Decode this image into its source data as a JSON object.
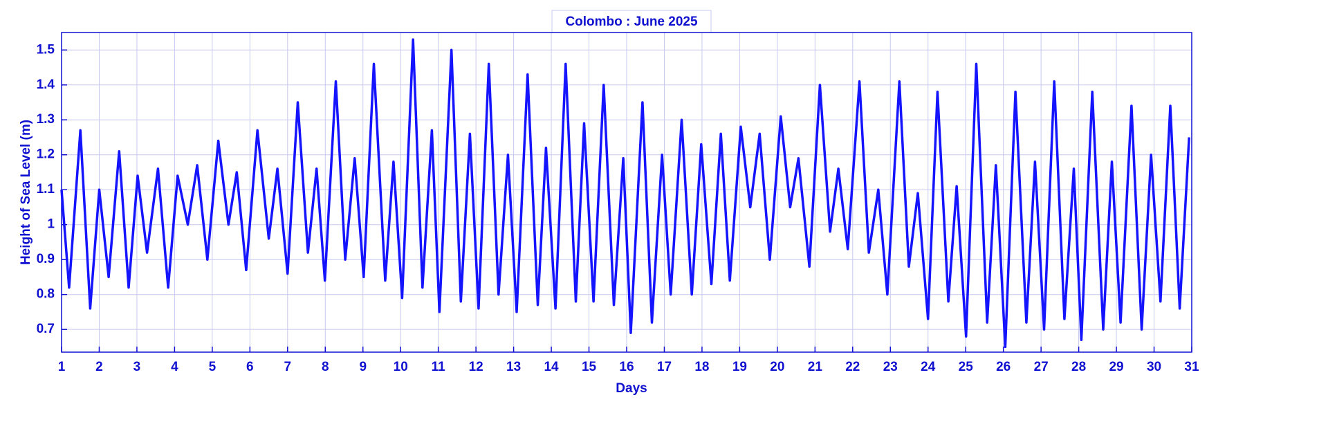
{
  "chart_data": {
    "type": "line",
    "title": "Colombo : June 2025",
    "xlabel": "Days",
    "ylabel": "Height of Sea Level (m)",
    "color": "#1414ff",
    "grid": true,
    "x": [
      1,
      1.2,
      1.5,
      1.76,
      2.0,
      2.25,
      2.53,
      2.78,
      3.02,
      3.27,
      3.56,
      3.83,
      4.08,
      4.35,
      4.6,
      4.87,
      5.16,
      5.43,
      5.65,
      5.9,
      6.2,
      6.5,
      6.73,
      7.0,
      7.27,
      7.54,
      7.77,
      7.99,
      8.28,
      8.53,
      8.78,
      9.02,
      9.29,
      9.59,
      9.81,
      10.04,
      10.33,
      10.58,
      10.83,
      11.03,
      11.35,
      11.6,
      11.84,
      12.07,
      12.34,
      12.6,
      12.85,
      13.08,
      13.37,
      13.64,
      13.86,
      14.11,
      14.38,
      14.65,
      14.87,
      15.12,
      15.39,
      15.66,
      15.91,
      16.11,
      16.42,
      16.67,
      16.94,
      17.17,
      17.46,
      17.73,
      17.98,
      18.25,
      18.5,
      18.74,
      19.03,
      19.28,
      19.53,
      19.8,
      20.09,
      20.34,
      20.56,
      20.85,
      21.13,
      21.4,
      21.62,
      21.87,
      22.18,
      22.43,
      22.68,
      22.92,
      23.24,
      23.49,
      23.73,
      24.0,
      24.25,
      24.54,
      24.76,
      25.01,
      25.28,
      25.57,
      25.8,
      26.05,
      26.32,
      26.61,
      26.84,
      27.08,
      27.35,
      27.62,
      27.87,
      28.07,
      28.36,
      28.65,
      28.88,
      29.11,
      29.4,
      29.67,
      29.92,
      30.17,
      30.43,
      30.68,
      30.93
    ],
    "values": [
      1.1,
      0.82,
      1.27,
      0.76,
      1.1,
      0.85,
      1.21,
      0.82,
      1.14,
      0.92,
      1.16,
      0.82,
      1.14,
      1.0,
      1.17,
      0.9,
      1.24,
      1.0,
      1.15,
      0.87,
      1.27,
      0.96,
      1.16,
      0.86,
      1.35,
      0.92,
      1.16,
      0.84,
      1.41,
      0.9,
      1.19,
      0.85,
      1.46,
      0.84,
      1.18,
      0.79,
      1.53,
      0.82,
      1.27,
      0.75,
      1.5,
      0.78,
      1.26,
      0.76,
      1.46,
      0.8,
      1.2,
      0.75,
      1.43,
      0.77,
      1.22,
      0.76,
      1.46,
      0.78,
      1.29,
      0.78,
      1.4,
      0.77,
      1.19,
      0.69,
      1.35,
      0.72,
      1.2,
      0.8,
      1.3,
      0.8,
      1.23,
      0.83,
      1.26,
      0.84,
      1.28,
      1.05,
      1.26,
      0.9,
      1.31,
      1.05,
      1.19,
      0.88,
      1.4,
      0.98,
      1.16,
      0.93,
      1.41,
      0.92,
      1.1,
      0.8,
      1.41,
      0.88,
      1.09,
      0.73,
      1.38,
      0.78,
      1.11,
      0.68,
      1.46,
      0.72,
      1.17,
      0.65,
      1.38,
      0.72,
      1.18,
      0.7,
      1.41,
      0.73,
      1.16,
      0.67,
      1.38,
      0.7,
      1.18,
      0.72,
      1.34,
      0.7,
      1.2,
      0.78,
      1.34,
      0.76,
      1.25
    ],
    "xlim": [
      1,
      31
    ],
    "xticks": [
      1,
      2,
      3,
      4,
      5,
      6,
      7,
      8,
      9,
      10,
      11,
      12,
      13,
      14,
      15,
      16,
      17,
      18,
      19,
      20,
      21,
      22,
      23,
      24,
      25,
      26,
      27,
      28,
      29,
      30,
      31
    ],
    "ylim": [
      0.635,
      1.55
    ],
    "yticks": [
      0.7,
      0.8,
      0.9,
      1,
      1.1,
      1.2,
      1.3,
      1.4,
      1.5
    ]
  }
}
